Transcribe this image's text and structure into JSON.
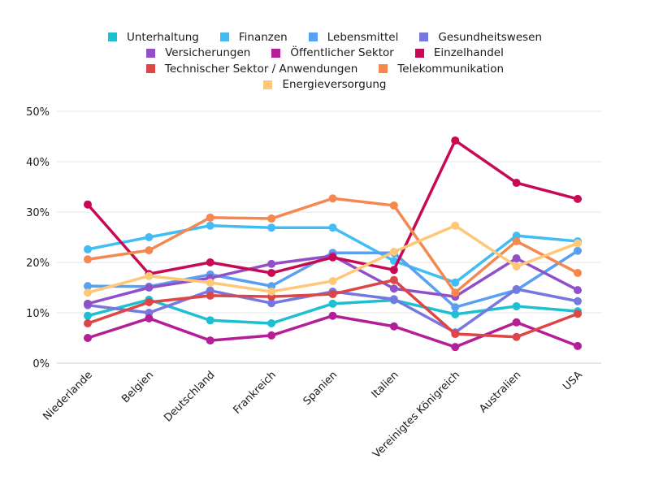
{
  "chart_data": {
    "type": "line",
    "title": "",
    "xlabel": "",
    "ylabel": "",
    "ylim": [
      0,
      50
    ],
    "yticks": [
      "0%",
      "10%",
      "20%",
      "30%",
      "40%",
      "50%"
    ],
    "ytick_values": [
      0,
      10,
      20,
      30,
      40,
      50
    ],
    "grid": true,
    "legend_position": "top",
    "categories": [
      "Niederlande",
      "Belgien",
      "Deutschland",
      "Frankreich",
      "Spanien",
      "Italien",
      "Vereinigtes Königreich",
      "Australien",
      "USA"
    ],
    "series": [
      {
        "name": "Unterhaltung",
        "color": "#1cc0d0",
        "values": [
          9.4,
          12.6,
          8.5,
          7.9,
          11.8,
          12.5,
          9.7,
          11.3,
          10.3
        ]
      },
      {
        "name": "Finanzen",
        "color": "#42bcf5",
        "values": [
          22.6,
          25.0,
          27.3,
          26.9,
          26.9,
          20.3,
          16.0,
          25.3,
          24.2
        ]
      },
      {
        "name": "Lebensmittel",
        "color": "#5aa0f2",
        "values": [
          15.3,
          15.2,
          17.6,
          15.3,
          21.9,
          21.9,
          11.1,
          14.5,
          22.3
        ]
      },
      {
        "name": "Gesundheitswesen",
        "color": "#7777e0",
        "values": [
          11.5,
          10.0,
          14.4,
          11.9,
          14.2,
          12.7,
          6.1,
          14.7,
          12.3
        ]
      },
      {
        "name": "Versicherungen",
        "color": "#9150c8",
        "values": [
          11.8,
          15.0,
          16.9,
          19.7,
          21.3,
          14.8,
          13.2,
          20.8,
          14.5
        ]
      },
      {
        "name": "Öffentlicher Sektor",
        "color": "#b41e96",
        "values": [
          5.0,
          8.9,
          4.5,
          5.5,
          9.4,
          7.3,
          3.2,
          8.1,
          3.4
        ]
      },
      {
        "name": "Einzelhandel",
        "color": "#c80a55",
        "values": [
          31.5,
          17.7,
          20.0,
          17.9,
          21.0,
          18.5,
          44.2,
          35.8,
          32.6
        ]
      },
      {
        "name": "Technischer Sektor / Anwendungen",
        "color": "#dc4646",
        "values": [
          7.9,
          12.1,
          13.4,
          13.2,
          13.7,
          16.5,
          5.8,
          5.2,
          9.8
        ]
      },
      {
        "name": "Telekommunikation",
        "color": "#f5874f",
        "values": [
          20.6,
          22.4,
          28.9,
          28.7,
          32.7,
          31.3,
          14.0,
          24.2,
          17.9
        ]
      },
      {
        "name": "Energieversorgung",
        "color": "#ffc878",
        "values": [
          14.0,
          17.3,
          16.0,
          14.2,
          16.3,
          22.1,
          27.3,
          19.2,
          23.8
        ]
      }
    ],
    "legend_rows": [
      [
        0,
        1,
        2,
        3
      ],
      [
        4,
        5,
        6
      ],
      [
        7,
        8
      ],
      [
        9
      ]
    ]
  }
}
